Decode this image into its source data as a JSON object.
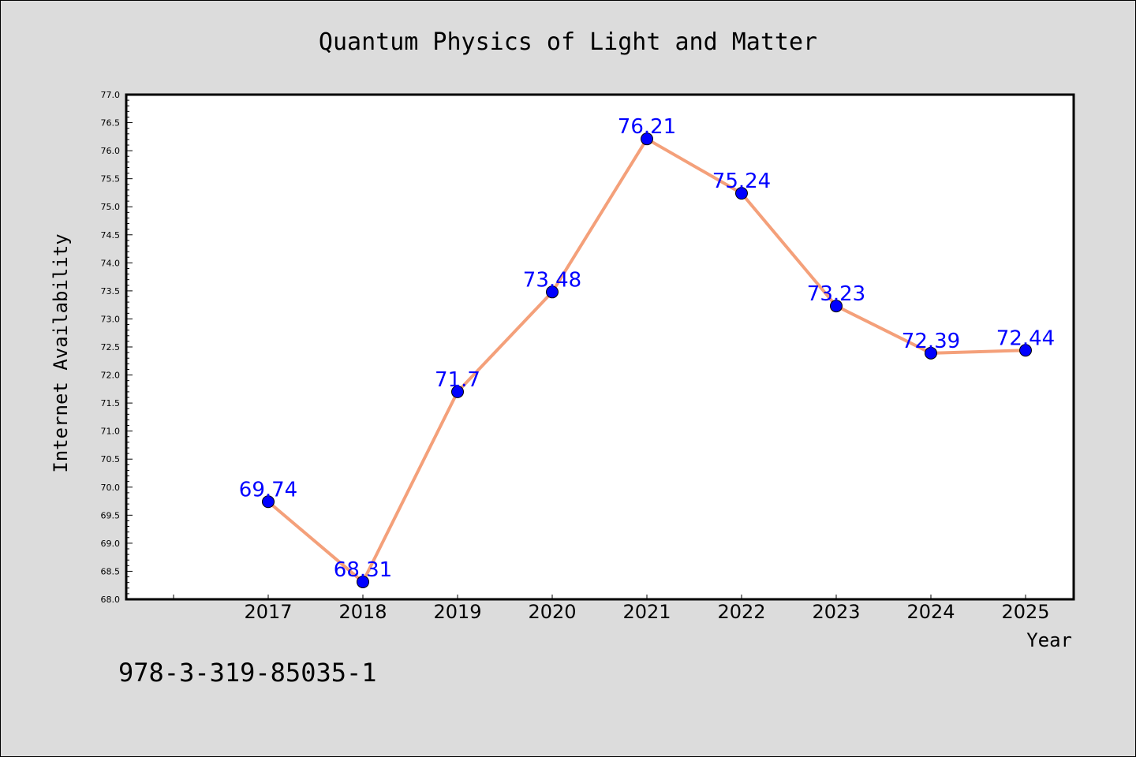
{
  "chart_data": {
    "type": "line",
    "title": "Quantum Physics of Light and Matter",
    "xlabel": "Year",
    "ylabel": "Internet Availability",
    "categories": [
      "2017",
      "2018",
      "2019",
      "2020",
      "2021",
      "2022",
      "2023",
      "2024",
      "2025"
    ],
    "series": [
      {
        "values": [
          69.74,
          68.31,
          71.7,
          73.48,
          76.21,
          75.24,
          73.23,
          72.39,
          72.44
        ],
        "data_labels": [
          "69.74",
          "68.31",
          "71.7",
          "73.48",
          "76.21",
          "75.24",
          "73.23",
          "72.39",
          "72.44"
        ],
        "line_color": "#f4a07a",
        "marker_color": "#0000ff"
      }
    ],
    "ylim": [
      68.0,
      77.0
    ],
    "yticks": [
      "68.0",
      "68.5",
      "69.0",
      "69.5",
      "70.0",
      "70.5",
      "71.0",
      "71.5",
      "72.0",
      "72.5",
      "73.0",
      "73.5",
      "74.0",
      "74.5",
      "75.0",
      "75.5",
      "76.0",
      "76.5",
      "77.0"
    ],
    "grid": false,
    "legend": "none",
    "label_color": "#0000ff",
    "background_color": "#dcdcdc",
    "plot_background_color": "#ffffff"
  },
  "footer": {
    "text": "978-3-319-85035-1"
  }
}
